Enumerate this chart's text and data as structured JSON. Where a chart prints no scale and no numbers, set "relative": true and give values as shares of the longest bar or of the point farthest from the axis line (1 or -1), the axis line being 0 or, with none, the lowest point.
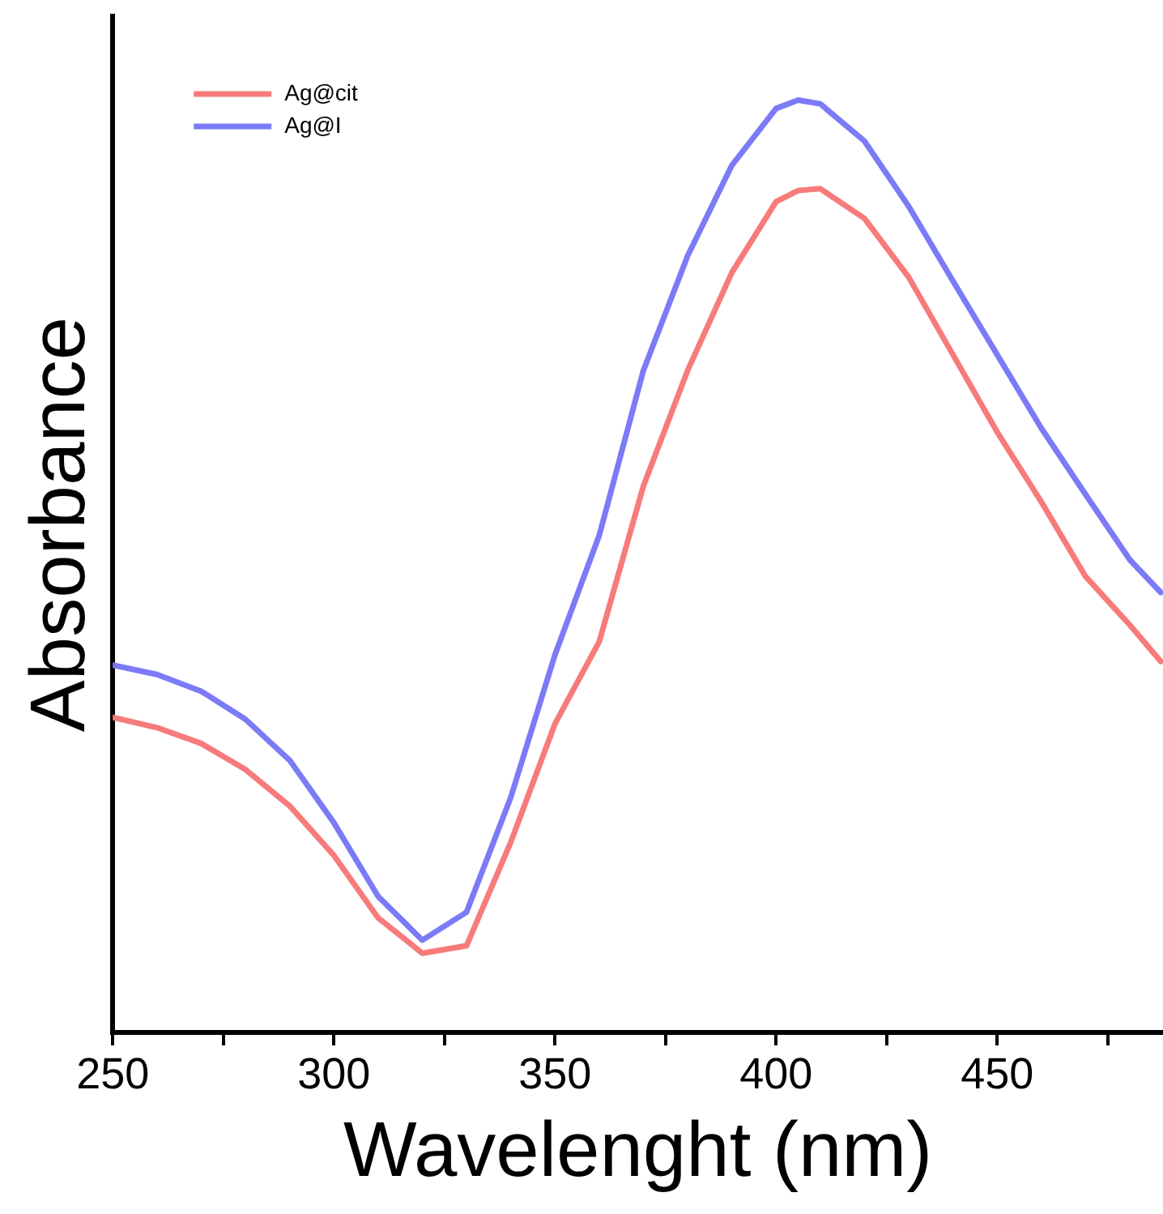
{
  "chart_data": {
    "type": "line",
    "relative": true,
    "xlabel": "Wavelenght (nm)",
    "ylabel": "Absorbance",
    "legend": "top left",
    "grid": false,
    "marker": "none",
    "line_style": "solid",
    "xlim": [
      250,
      487.5
    ],
    "xticks": [
      250,
      {
        "value": 275,
        "label": null
      },
      300,
      {
        "value": 325,
        "label": null
      },
      350,
      {
        "value": 375,
        "label": null
      },
      400,
      {
        "value": 425,
        "label": null
      },
      450,
      {
        "value": 475,
        "label": null
      }
    ],
    "x": [
      250,
      260,
      270,
      280,
      290,
      300,
      310,
      320,
      330,
      340,
      350,
      360,
      370,
      380,
      390,
      400,
      405,
      410,
      420,
      430,
      440,
      450,
      460,
      470,
      480,
      487
    ],
    "series": [
      {
        "name": "Ag@cit",
        "color": "#f77b7b",
        "values": [
          0.338,
          0.327,
          0.31,
          0.282,
          0.243,
          0.19,
          0.123,
          0.085,
          0.093,
          0.204,
          0.331,
          0.419,
          0.586,
          0.71,
          0.815,
          0.891,
          0.903,
          0.905,
          0.873,
          0.81,
          0.727,
          0.644,
          0.569,
          0.489,
          0.437,
          0.398
        ]
      },
      {
        "name": "Ag@I",
        "color": "#7b7bf7",
        "values": [
          0.394,
          0.384,
          0.366,
          0.336,
          0.292,
          0.225,
          0.146,
          0.099,
          0.129,
          0.252,
          0.405,
          0.533,
          0.71,
          0.833,
          0.93,
          0.991,
          1.0,
          0.996,
          0.956,
          0.886,
          0.806,
          0.727,
          0.648,
          0.577,
          0.507,
          0.472
        ]
      }
    ]
  }
}
